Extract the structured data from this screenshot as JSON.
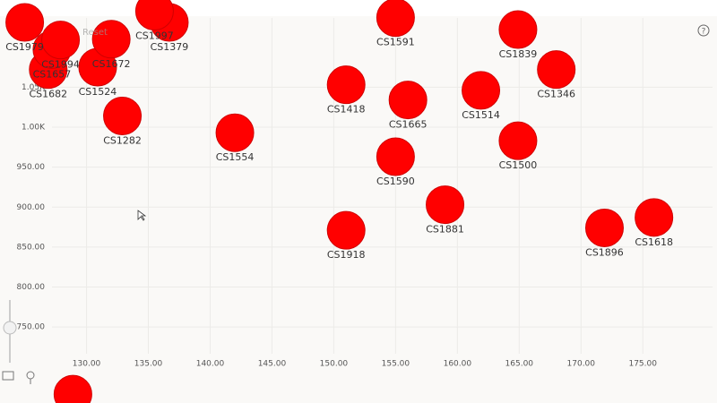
{
  "chart_data": {
    "type": "scatter",
    "reset_label": "Reset",
    "labels": [
      "CS1591",
      "CS1839",
      "CS1346",
      "CS1418",
      "CS1665",
      "CS1514",
      "CS1500",
      "CS1554",
      "CS1282",
      "CS1590",
      "CS1881",
      "CS1918",
      "CS1896",
      "CS1618",
      "CS1379",
      "CS1524",
      "CS1672",
      "CS1682",
      "CS1657",
      "CS1994",
      "CS1979",
      "CS1997",
      null
    ],
    "x": [
      155.0,
      164.9,
      168.0,
      151.0,
      156.0,
      161.9,
      164.9,
      142.0,
      132.9,
      155.0,
      159.0,
      151.0,
      171.9,
      175.9,
      136.7,
      130.9,
      132.0,
      126.9,
      127.2,
      127.9,
      125.0,
      135.5,
      128.9
    ],
    "values": [
      1137,
      1122,
      1072,
      1053,
      1034,
      1046,
      983,
      993,
      1014,
      963,
      903,
      871,
      874,
      887,
      1131,
      1075,
      1110,
      1072,
      1097,
      1109,
      1131,
      1145,
      666
    ],
    "color": "#ff0000",
    "xlim": [
      123,
      181
    ],
    "ylim": [
      655,
      1159
    ],
    "xticks": [
      {
        "value": 130,
        "label": "130.00"
      },
      {
        "value": 135,
        "label": "135.00"
      },
      {
        "value": 140,
        "label": "140.00"
      },
      {
        "value": 145,
        "label": "145.00"
      },
      {
        "value": 150,
        "label": "150.00"
      },
      {
        "value": 155,
        "label": "155.00"
      },
      {
        "value": 160,
        "label": "160.00"
      },
      {
        "value": 165,
        "label": "165.00"
      },
      {
        "value": 170,
        "label": "170.00"
      },
      {
        "value": 175,
        "label": "175.00"
      }
    ],
    "yticks": [
      {
        "value": 750,
        "label": "750.00"
      },
      {
        "value": 800,
        "label": "800.00"
      },
      {
        "value": 850,
        "label": "850.00"
      },
      {
        "value": 900,
        "label": "900.00"
      },
      {
        "value": 950,
        "label": "950.00"
      },
      {
        "value": 1000,
        "label": "1.00K"
      },
      {
        "value": 1050,
        "label": "1.05K"
      }
    ],
    "grid": true
  }
}
